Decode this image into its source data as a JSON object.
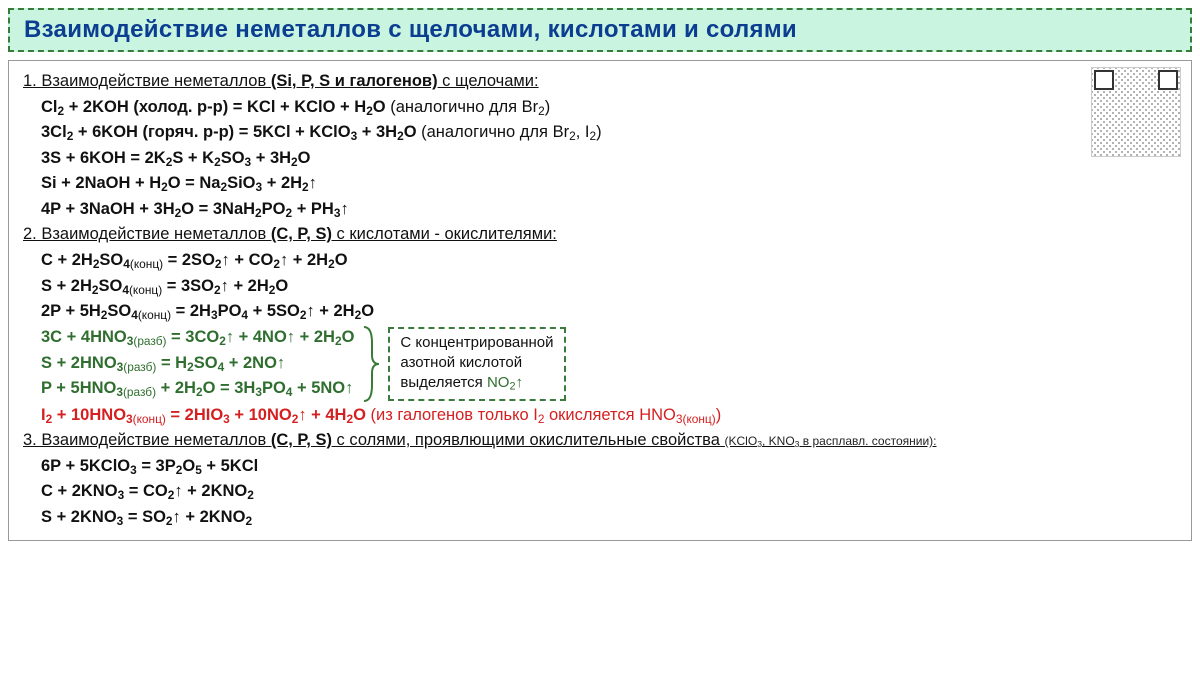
{
  "title": "Взаимодействие неметаллов с щелочами, кислотами и солями",
  "colors": {
    "title_bg": "#c9f5e0",
    "title_border": "#3a7a3a",
    "title_text": "#0b3d91",
    "eq_green": "#2f6e2f",
    "eq_red": "#d42020",
    "brace": "#3a7a3a"
  },
  "fontsize": {
    "title": 24,
    "body": 16.5,
    "inset": 15,
    "smallnote": 12
  },
  "sections": {
    "s1": {
      "head_pre": "1. Взаимодействие неметаллов ",
      "head_u": "(Si, P, S и галогенов)",
      "head_post": "  с щелочами:"
    },
    "s2": {
      "head_pre": "2. Взаимодействие неметаллов ",
      "head_u": "(C, P, S)",
      "head_post": "  с кислотами - окислителями:"
    },
    "s3": {
      "head_pre": "3. Взаимодействие неметаллов ",
      "head_u": "(C, P, S)",
      "head_post": "  с солями, проявлющими окислительные свойства ",
      "head_small": "(KClO₃, KNO₃ в расплавл. состоянии):"
    }
  },
  "eq": {
    "e1": {
      "f": "Cl₂ + 2KOH (холод. р-р) = KCl + KClO + H₂O ",
      "n": "(аналогично для Br₂)"
    },
    "e2": {
      "f": "3Cl₂ + 6KOH (горяч. р-р) = 5KCl + KClO₃ + 3H₂O ",
      "n": "(аналогично для Br₂, I₂)"
    },
    "e3": {
      "f": "3S + 6KOH = 2K₂S + K₂SO₃ + 3H₂O"
    },
    "e4": {
      "f": "Si + 2NaOH + H₂O = Na₂SiO₃ + 2H₂↑"
    },
    "e5": {
      "f": "4P + 3NaOH + 3H₂O = 3NaH₂PO₂ + PH₃↑"
    },
    "e6": {
      "f": "C + 2H₂SO₄₍конц₎ = 2SO₂↑ + CO₂↑  + 2H₂O"
    },
    "e7": {
      "f": "S + 2H₂SO₄₍конц₎ = 3SO₂↑ + 2H₂O"
    },
    "e8": {
      "f": "2P + 5H₂SO₄₍конц₎ = 2H₃PO₄ + 5SO₂↑ + 2H₂O"
    },
    "e9": {
      "f": "3C + 4HNO₃₍разб₎ = 3CO₂↑ + 4NO↑  + 2H₂O"
    },
    "e10": {
      "f": "S + 2HNO₃₍разб₎ = H₂SO₄ + 2NO↑"
    },
    "e11": {
      "f": "P + 5HNO₃₍разб₎ + 2H₂O = 3H₃PO₄ + 5NO↑"
    },
    "e12": {
      "f": "I₂ + 10HNO₃₍конц₎ = 2HIO₃ + 10NO₂↑ + 4H₂O ",
      "n": "(из галогенов только I₂ окисляется HNO₃₍конц₎)"
    },
    "e13": {
      "f": "6P + 5KClO₃ = 3P₂O₅ + 5KCl"
    },
    "e14": {
      "f": "C + 2KNO₃ = CO₂↑ + 2KNO₂"
    },
    "e15": {
      "f": "S + 2KNO₃ = SO₂↑ + 2KNO₂"
    }
  },
  "inset": {
    "l1": "С концентрированной",
    "l2": "азотной кислотой",
    "l3a": "выделяется ",
    "l3b": "NO₂↑"
  }
}
